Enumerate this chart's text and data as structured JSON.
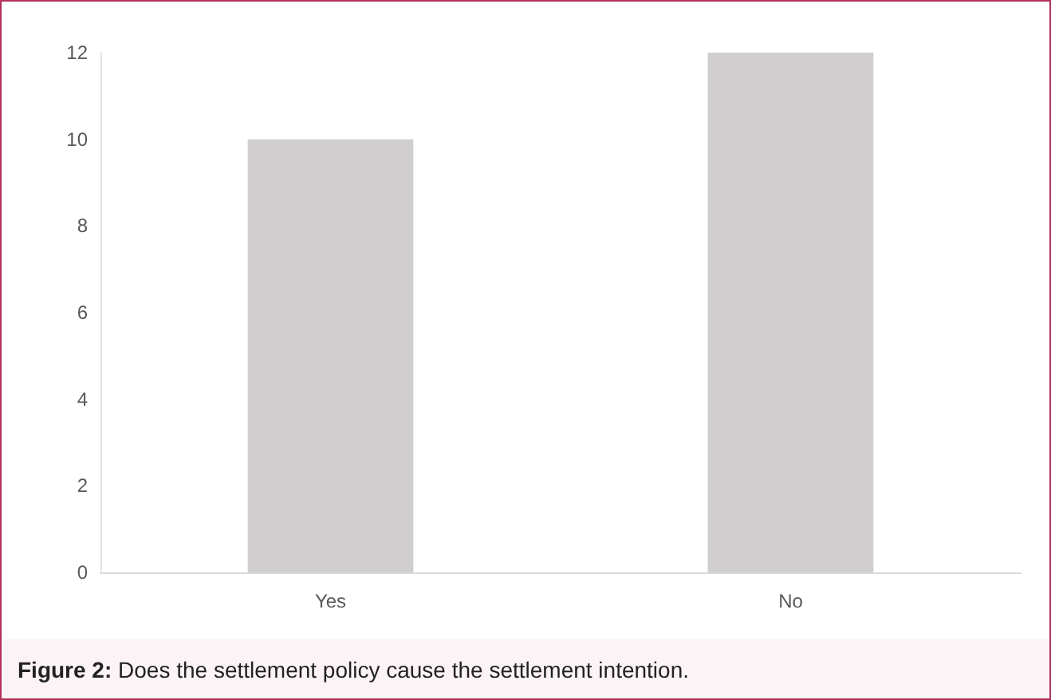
{
  "chart_data": {
    "type": "bar",
    "categories": [
      "Yes",
      "No"
    ],
    "values": [
      10,
      12
    ],
    "color": "#d0cecf",
    "ylim": [
      0,
      12
    ],
    "yticks": [
      0,
      2,
      4,
      6,
      8,
      10,
      12
    ],
    "grid": false,
    "annotations": [
      "Figure 2: Does the settlement policy cause the settlement intention."
    ]
  }
}
